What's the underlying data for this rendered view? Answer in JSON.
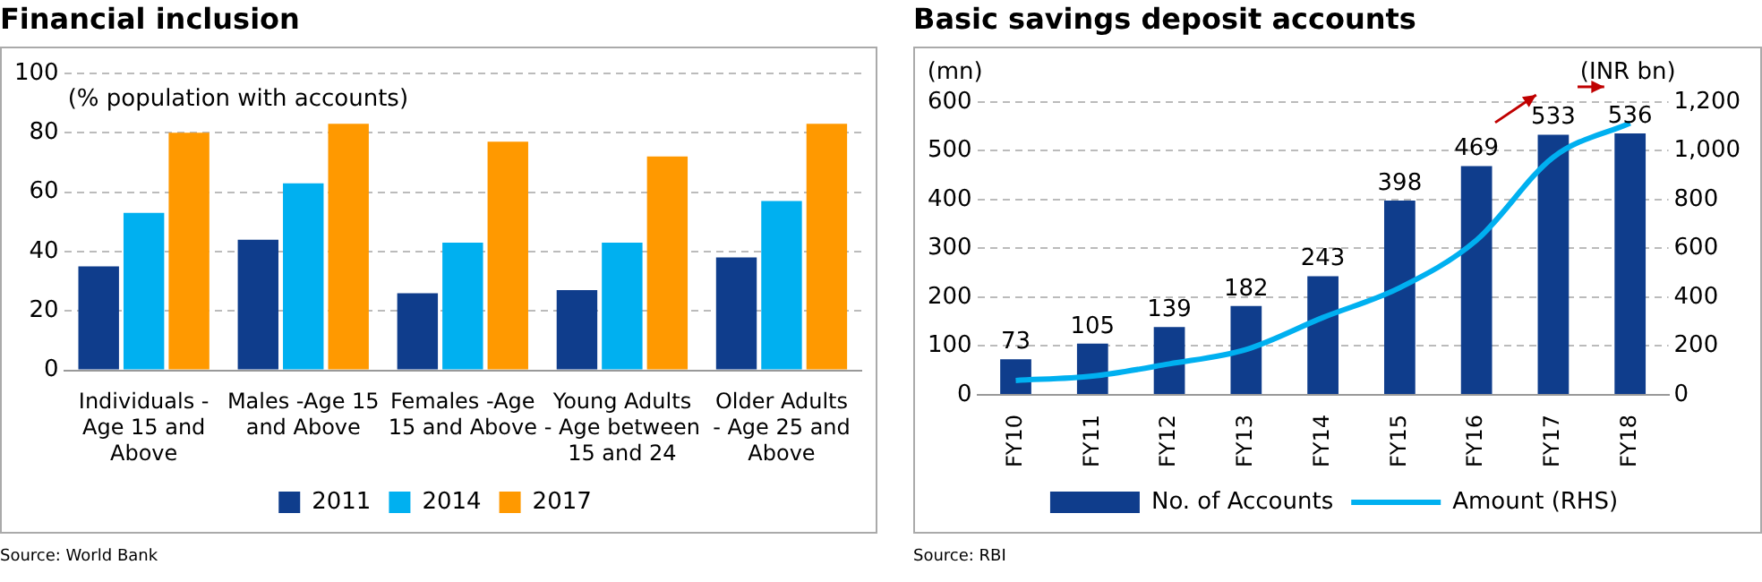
{
  "chart_data": [
    {
      "type": "bar",
      "title": "Financial inclusion",
      "ylabel": "(% population with accounts)",
      "categories": [
        "Individuals - Age 15 and Above",
        "Males -Age 15 and Above",
        "Females -Age 15 and Above",
        "Young Adults - Age between 15 and 24",
        "Older Adults - Age 25 and Above"
      ],
      "series": [
        {
          "name": "2011",
          "color": "#0f3d8c",
          "values": [
            35,
            44,
            26,
            27,
            38
          ]
        },
        {
          "name": "2014",
          "color": "#00b0f0",
          "values": [
            53,
            63,
            43,
            43,
            57
          ]
        },
        {
          "name": "2017",
          "color": "#ff9900",
          "values": [
            80,
            83,
            77,
            72,
            83
          ]
        }
      ],
      "ylim": [
        0,
        100
      ],
      "yticks": [
        0,
        20,
        40,
        60,
        80,
        100
      ],
      "grid": "y",
      "legend": "bottom",
      "annotations": [
        "Source: World Bank"
      ]
    },
    {
      "type": "bar",
      "title": "Basic savings deposit accounts",
      "ylabel": "(mn)",
      "y2label": "(INR bn)",
      "categories": [
        "FY10",
        "FY11",
        "FY12",
        "FY13",
        "FY14",
        "FY15",
        "FY16",
        "FY17",
        "FY18"
      ],
      "series": [
        {
          "name": "No. of Accounts",
          "color": "#0f3d8c",
          "values": [
            73,
            105,
            139,
            182,
            243,
            398,
            469,
            533,
            536
          ],
          "value_labels": [
            "73",
            "105",
            "139",
            "182",
            "243",
            "398",
            "469",
            "533",
            "536"
          ]
        },
        {
          "name": "Amount (RHS)",
          "type": "line",
          "axis": "y2",
          "marker": "none",
          "color": "#00b0f0",
          "values": [
            59,
            77,
            127,
            186,
            317,
            439,
            634,
            974,
            1114
          ]
        }
      ],
      "ylim": [
        0,
        600
      ],
      "yticks": [
        0,
        100,
        200,
        300,
        400,
        500,
        600
      ],
      "y2lim": [
        0,
        1200
      ],
      "y2ticks": [
        0,
        200,
        400,
        600,
        800,
        {
          "value": 1000,
          "label": "1,000"
        },
        {
          "value": 1200,
          "label": "1,200"
        }
      ],
      "grid": "y",
      "legend": "bottom",
      "annotations": [
        "Source: RBI"
      ]
    }
  ]
}
